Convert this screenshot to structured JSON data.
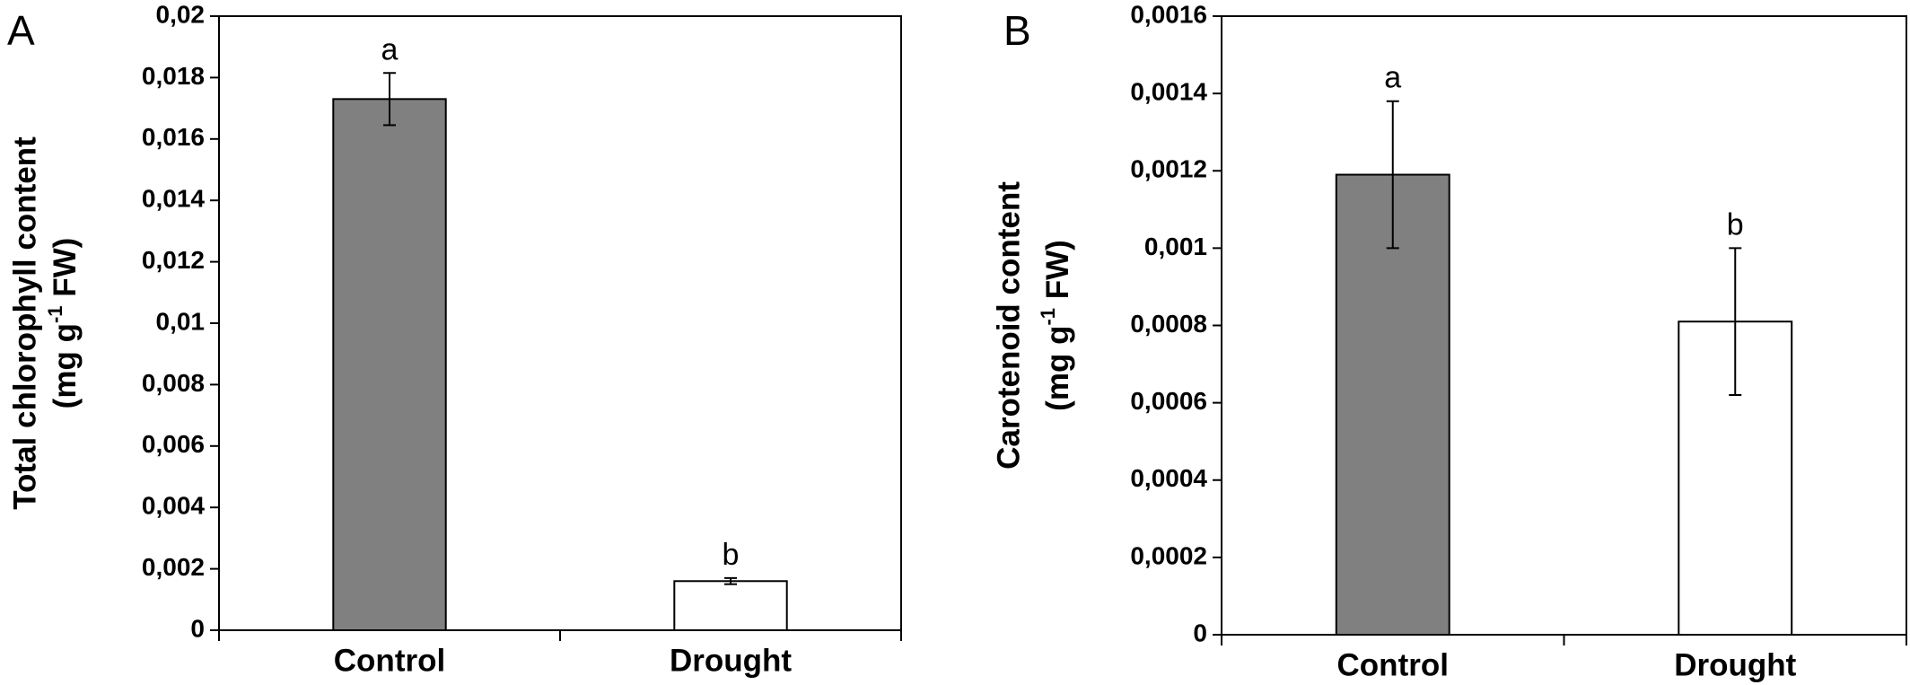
{
  "chart_data": [
    {
      "type": "bar",
      "panel_label": "A",
      "ylabel": "Total chlorophyll content",
      "ylabel_unit": {
        "before": "(mg g",
        "sup": "-1",
        "after": " FW)"
      },
      "categories": [
        "Control",
        "Drought"
      ],
      "values": [
        0.0173,
        0.0016
      ],
      "errors": [
        0.00085,
        0.0001
      ],
      "significance_labels": [
        "a",
        "b"
      ],
      "colors": [
        "#808080",
        "#ffffff"
      ],
      "ylim": [
        0,
        0.02
      ],
      "yticks": [
        0,
        {
          "value": 0.002,
          "label": "0,002"
        },
        {
          "value": 0.004,
          "label": "0,004"
        },
        {
          "value": 0.006,
          "label": "0,006"
        },
        {
          "value": 0.008,
          "label": "0,008"
        },
        {
          "value": 0.01,
          "label": "0,01"
        },
        {
          "value": 0.012,
          "label": "0,012"
        },
        {
          "value": 0.014,
          "label": "0,014"
        },
        {
          "value": 0.016,
          "label": "0,016"
        },
        {
          "value": 0.018,
          "label": "0,018"
        },
        {
          "value": 0.02,
          "label": "0,02"
        }
      ]
    },
    {
      "type": "bar",
      "panel_label": "B",
      "ylabel": "Carotenoid content",
      "ylabel_unit": {
        "before": "(mg g",
        "sup": "-1",
        "after": " FW)"
      },
      "categories": [
        "Control",
        "Drought"
      ],
      "values": [
        0.00119,
        0.00081
      ],
      "errors": [
        0.00019,
        0.00019
      ],
      "significance_labels": [
        "a",
        "b"
      ],
      "colors": [
        "#808080",
        "#ffffff"
      ],
      "ylim": [
        0,
        0.0016
      ],
      "yticks": [
        0,
        {
          "value": 0.0002,
          "label": "0,0002"
        },
        {
          "value": 0.0004,
          "label": "0,0004"
        },
        {
          "value": 0.0006,
          "label": "0,0006"
        },
        {
          "value": 0.0008,
          "label": "0,0008"
        },
        {
          "value": 0.001,
          "label": "0,001"
        },
        {
          "value": 0.0012,
          "label": "0,0012"
        },
        {
          "value": 0.0014,
          "label": "0,0014"
        },
        {
          "value": 0.0016,
          "label": "0,0016"
        }
      ]
    }
  ]
}
